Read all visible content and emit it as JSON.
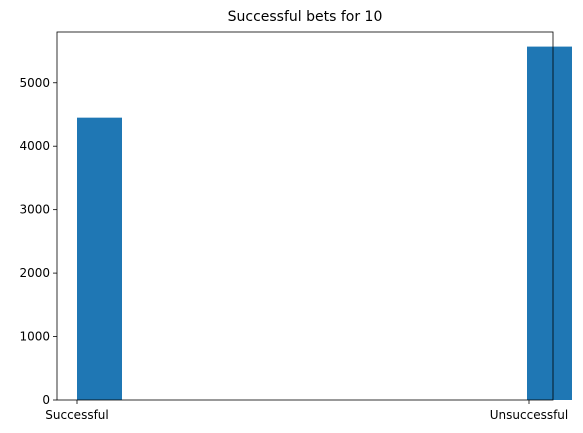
{
  "chart_data": {
    "type": "bar",
    "title": "Successful bets for 10",
    "xlabel": "",
    "ylabel": "",
    "categories": [
      "Successful",
      "Unsuccessful"
    ],
    "values": [
      4450,
      5570
    ],
    "ylim": [
      0,
      5800
    ],
    "yticks": [
      0,
      1000,
      2000,
      3000,
      4000,
      5000
    ],
    "bar_color": "#1f77b4",
    "grid": false,
    "legend": "none"
  }
}
